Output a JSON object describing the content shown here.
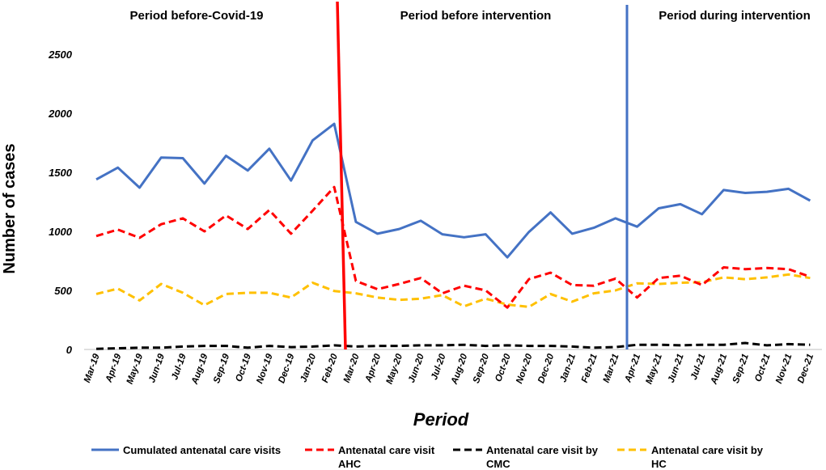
{
  "chart_data": {
    "type": "line",
    "title": "",
    "xlabel": "Period",
    "ylabel": "Number of cases",
    "ylim": [
      0,
      2500
    ],
    "yticks": [
      0,
      500,
      1000,
      1500,
      2000,
      2500
    ],
    "grid": false,
    "categories": [
      "Mar-19",
      "Apr-19",
      "May-19",
      "Jun-19",
      "Jul-19",
      "Aug-19",
      "Sep-19",
      "Oct-19",
      "Nov-19",
      "Dec-19",
      "Jan-20",
      "Feb-20",
      "Mar-20",
      "Apr-20",
      "May-20",
      "Jun-20",
      "Jul-20",
      "Aug-20",
      "Sep-20",
      "Oct-20",
      "Nov-20",
      "Dec-20",
      "Jan-21",
      "Feb-21",
      "Mar-21",
      "Apr-21",
      "May-21",
      "Jun-21",
      "Jul-21",
      "Aug-21",
      "Sep-21",
      "Oct-21",
      "Nov-21",
      "Dec-21"
    ],
    "series": [
      {
        "name": "Cumulated antenatal care visits",
        "color": "#4472c4",
        "dash": "solid",
        "values": [
          1440,
          1540,
          1370,
          1625,
          1620,
          1405,
          1640,
          1515,
          1700,
          1430,
          1770,
          1910,
          1080,
          980,
          1020,
          1090,
          975,
          950,
          975,
          780,
          995,
          1160,
          980,
          1030,
          1110,
          1040,
          1195,
          1230,
          1145,
          1350,
          1325,
          1335,
          1360,
          1260
        ]
      },
      {
        "name": "Antenatal care visit AHC",
        "color": "#ff0000",
        "dash": "dashed",
        "values": [
          960,
          1015,
          945,
          1060,
          1110,
          1000,
          1135,
          1020,
          1180,
          980,
          1175,
          1375,
          580,
          510,
          555,
          605,
          475,
          540,
          500,
          355,
          595,
          650,
          545,
          540,
          600,
          440,
          605,
          625,
          545,
          695,
          680,
          690,
          680,
          615
        ]
      },
      {
        "name": "Antenatal care visit by CMC",
        "color": "#000000",
        "dash": "dashed",
        "values": [
          5,
          10,
          15,
          15,
          25,
          30,
          30,
          15,
          30,
          20,
          25,
          35,
          25,
          30,
          30,
          35,
          35,
          40,
          30,
          35,
          30,
          30,
          25,
          15,
          20,
          40,
          40,
          35,
          40,
          40,
          55,
          35,
          45,
          40
        ]
      },
      {
        "name": "Antenatal care visit by HC",
        "color": "#ffc000",
        "dash": "dashed",
        "values": [
          470,
          515,
          415,
          555,
          480,
          375,
          470,
          480,
          480,
          440,
          565,
          495,
          475,
          440,
          420,
          430,
          460,
          365,
          430,
          380,
          360,
          470,
          405,
          475,
          500,
          560,
          555,
          565,
          570,
          610,
          595,
          610,
          635,
          605
        ]
      }
    ],
    "periods": [
      {
        "label": "Period before-Covid-19"
      },
      {
        "label": "Period before intervention"
      },
      {
        "label": "Period during  intervention"
      }
    ],
    "dividers": [
      {
        "name": "covid-onset-line",
        "color": "#ff0000",
        "between": [
          "Feb-20",
          "Mar-20"
        ]
      },
      {
        "name": "intervention-start-line",
        "color": "#4472c4",
        "between": [
          "Mar-21",
          "Apr-21"
        ]
      }
    ],
    "legend_position": "bottom",
    "legend": [
      {
        "line1": "Cumulated antenatal care visits",
        "line2": ""
      },
      {
        "line1": "Antenatal care visit",
        "line2": "AHC"
      },
      {
        "line1": "Antenatal care visit by",
        "line2": "CMC"
      },
      {
        "line1": "Antenatal care visit by",
        "line2": "HC"
      }
    ]
  }
}
